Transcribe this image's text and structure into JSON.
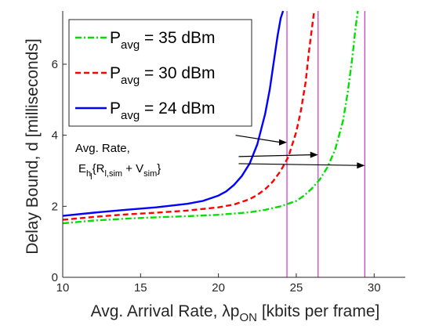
{
  "chart_data": {
    "type": "line",
    "title": "",
    "xlabel": "Avg. Arrival Rate, λp",
    "xlabel_subscript": "ON",
    "xlabel_suffix": " [kbits per frame]",
    "ylabel": "Delay Bound, d [milliseconds]",
    "xlim": [
      10,
      32
    ],
    "ylim": [
      0,
      7.5
    ],
    "xticks": [
      "10",
      "15",
      "20",
      "25",
      "30"
    ],
    "yticks": [
      "0",
      "2",
      "4",
      "6"
    ],
    "grid": false,
    "legend_position": "top-left",
    "legend": [
      {
        "prefix": "P",
        "sub": "avg",
        "suffix": " = 35 dBm",
        "color": "#00e000",
        "dash": "dashdot"
      },
      {
        "prefix": "P",
        "sub": "avg",
        "suffix": " = 30 dBm",
        "color": "#ff0000",
        "dash": "dashed"
      },
      {
        "prefix": "P",
        "sub": "avg",
        "suffix": " = 24 dBm",
        "color": "#0000ff",
        "dash": "solid"
      }
    ],
    "series": [
      {
        "name": "Pavg = 35 dBm",
        "color": "#00e000",
        "dash": "dashdot",
        "x": [
          10,
          12,
          14,
          16,
          18,
          20,
          22,
          23,
          24,
          25,
          25.5,
          26,
          26.5,
          27,
          27.5,
          28,
          28.3,
          28.6,
          28.8,
          28.95
        ],
        "y": [
          1.52,
          1.6,
          1.65,
          1.69,
          1.72,
          1.76,
          1.83,
          1.9,
          2.0,
          2.15,
          2.3,
          2.5,
          2.75,
          3.1,
          3.6,
          4.4,
          5.2,
          6.2,
          7.0,
          7.5
        ]
      },
      {
        "name": "Pavg = 30 dBm",
        "color": "#ff0000",
        "dash": "dashed",
        "x": [
          10,
          12,
          14,
          16,
          18,
          20,
          21,
          22,
          22.5,
          23,
          23.5,
          24,
          24.5,
          25,
          25.3,
          25.6,
          25.8,
          26.0,
          26.15
        ],
        "y": [
          1.62,
          1.7,
          1.77,
          1.82,
          1.88,
          1.97,
          2.05,
          2.2,
          2.32,
          2.48,
          2.7,
          3.0,
          3.4,
          4.1,
          4.7,
          5.5,
          6.3,
          7.0,
          7.5
        ]
      },
      {
        "name": "Pavg = 24 dBm",
        "color": "#0000ff",
        "dash": "solid",
        "x": [
          10,
          12,
          14,
          16,
          18,
          19,
          20,
          20.5,
          21,
          21.5,
          22,
          22.5,
          23,
          23.3,
          23.6,
          23.8,
          24.0,
          24.15
        ],
        "y": [
          1.73,
          1.82,
          1.9,
          1.97,
          2.07,
          2.15,
          2.3,
          2.42,
          2.6,
          2.85,
          3.2,
          3.75,
          4.6,
          5.3,
          6.2,
          6.8,
          7.3,
          7.5
        ]
      }
    ],
    "vertical_lines": {
      "color": "#cc33cc",
      "x": [
        24.4,
        26.4,
        29.4
      ]
    },
    "annotation": {
      "line1": "Avg. Rate,",
      "line2_E": "E",
      "line2_sub_h": "h",
      "line2_sub_l": "l",
      "line2_mid": "{R",
      "line2_sub_lsim": "l,sim",
      "line2_plus": " + V",
      "line2_sub_sim": "sim",
      "line2_end": "}",
      "arrows": [
        {
          "from": [
            21.1,
            4.0
          ],
          "to": [
            24.4,
            3.8
          ]
        },
        {
          "from": [
            21.3,
            3.4
          ],
          "to": [
            26.4,
            3.45
          ]
        },
        {
          "from": [
            21.3,
            3.2
          ],
          "to": [
            29.4,
            3.15
          ]
        }
      ]
    }
  }
}
